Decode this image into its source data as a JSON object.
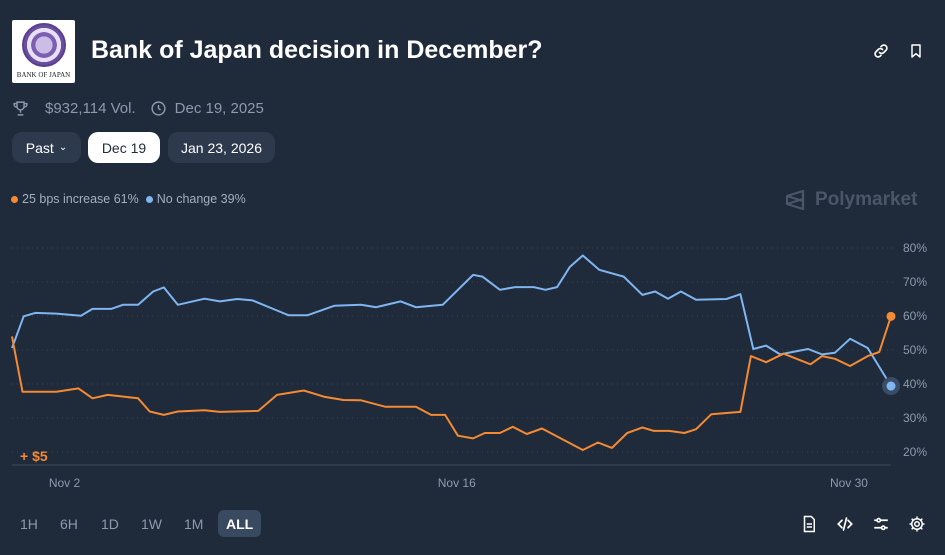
{
  "header": {
    "logo_text": "BANK OF JAPAN",
    "title": "Bank of Japan decision in December?",
    "volume": "$932,114 Vol.",
    "end_date": "Dec 19, 2025"
  },
  "date_tabs": [
    {
      "label": "Past",
      "selected": false
    },
    {
      "label": "Dec 19",
      "selected": true
    },
    {
      "label": "Jan 23, 2026",
      "selected": false
    }
  ],
  "legend": [
    {
      "label": "25 bps increase 61%",
      "color": "#f58a32"
    },
    {
      "label": "No change 39%",
      "color": "#7fb6f2"
    }
  ],
  "brand": "Polymarket",
  "chart_data": {
    "type": "line",
    "ylim": [
      20,
      80
    ],
    "y_ticks": [
      "80%",
      "70%",
      "60%",
      "50%",
      "40%",
      "30%",
      "20%"
    ],
    "y_tick_values": [
      80,
      70,
      60,
      50,
      40,
      30,
      20
    ],
    "x_ticks": [
      {
        "label": "Nov 2",
        "date": "2025-11-02T00:00"
      },
      {
        "label": "Nov 16",
        "date": "2025-11-16T00:00"
      },
      {
        "label": "Nov 30",
        "date": "2025-11-30T00:00"
      }
    ],
    "annotation": "+ $5",
    "grid": true,
    "series": [
      {
        "name": "No change",
        "color": "#7fb6f2",
        "points": [
          [
            "2025-10-31T03:00",
            50.6
          ],
          [
            "2025-10-31T13:00",
            59.9
          ],
          [
            "2025-10-31T23:00",
            60.9
          ],
          [
            "2025-11-01T17:00",
            60.7
          ],
          [
            "2025-11-02T14:00",
            60.1
          ],
          [
            "2025-11-03T00:00",
            62.1
          ],
          [
            "2025-11-03T16:00",
            62.1
          ],
          [
            "2025-11-04T02:00",
            63.3
          ],
          [
            "2025-11-04T15:00",
            63.3
          ],
          [
            "2025-11-05T04:00",
            67.2
          ],
          [
            "2025-11-05T13:00",
            68.4
          ],
          [
            "2025-11-06T01:00",
            63.3
          ],
          [
            "2025-11-07T00:00",
            65.1
          ],
          [
            "2025-11-07T13:00",
            64.3
          ],
          [
            "2025-11-08T04:00",
            65.0
          ],
          [
            "2025-11-08T17:00",
            64.6
          ],
          [
            "2025-11-09T12:00",
            61.9
          ],
          [
            "2025-11-10T00:00",
            60.2
          ],
          [
            "2025-11-10T16:00",
            60.2
          ],
          [
            "2025-11-11T15:00",
            63.0
          ],
          [
            "2025-11-12T14:00",
            63.3
          ],
          [
            "2025-11-13T03:00",
            62.6
          ],
          [
            "2025-11-14T00:00",
            64.3
          ],
          [
            "2025-11-14T13:00",
            62.6
          ],
          [
            "2025-11-15T12:00",
            63.3
          ],
          [
            "2025-11-16T14:00",
            72.1
          ],
          [
            "2025-11-16T22:00",
            71.6
          ],
          [
            "2025-11-17T13:00",
            67.7
          ],
          [
            "2025-11-18T02:00",
            68.5
          ],
          [
            "2025-11-18T18:00",
            68.5
          ],
          [
            "2025-11-19T04:00",
            67.7
          ],
          [
            "2025-11-19T14:00",
            68.5
          ],
          [
            "2025-11-20T01:00",
            74.5
          ],
          [
            "2025-11-20T12:00",
            77.8
          ],
          [
            "2025-11-21T02:00",
            73.6
          ],
          [
            "2025-11-21T23:00",
            71.6
          ],
          [
            "2025-11-22T15:00",
            66.2
          ],
          [
            "2025-11-23T02:00",
            67.2
          ],
          [
            "2025-11-23T13:00",
            65.1
          ],
          [
            "2025-11-24T00:00",
            67.2
          ],
          [
            "2025-11-24T13:00",
            64.8
          ],
          [
            "2025-11-25T15:00",
            65.0
          ],
          [
            "2025-11-26T03:00",
            66.4
          ],
          [
            "2025-11-26T14:00",
            50.3
          ],
          [
            "2025-11-27T01:00",
            51.3
          ],
          [
            "2025-11-27T13:00",
            48.7
          ],
          [
            "2025-11-28T13:00",
            50.3
          ],
          [
            "2025-11-29T01:00",
            48.7
          ],
          [
            "2025-11-29T12:00",
            49.2
          ],
          [
            "2025-11-30T01:00",
            53.3
          ],
          [
            "2025-11-30T16:00",
            50.6
          ],
          [
            "2025-12-01T12:00",
            39.4
          ]
        ]
      },
      {
        "name": "25 bps increase",
        "color": "#f58a32",
        "points": [
          [
            "2025-10-31T03:00",
            54.0
          ],
          [
            "2025-10-31T12:00",
            37.7
          ],
          [
            "2025-11-01T17:00",
            37.7
          ],
          [
            "2025-11-02T12:00",
            38.7
          ],
          [
            "2025-11-03T00:00",
            35.8
          ],
          [
            "2025-11-03T13:00",
            36.8
          ],
          [
            "2025-11-04T15:00",
            35.8
          ],
          [
            "2025-11-05T01:00",
            31.9
          ],
          [
            "2025-11-05T13:00",
            30.9
          ],
          [
            "2025-11-06T01:00",
            31.9
          ],
          [
            "2025-11-07T00:00",
            32.3
          ],
          [
            "2025-11-07T13:00",
            31.8
          ],
          [
            "2025-11-08T22:00",
            32.1
          ],
          [
            "2025-11-09T14:00",
            36.8
          ],
          [
            "2025-11-10T13:00",
            38.1
          ],
          [
            "2025-11-11T07:00",
            36.2
          ],
          [
            "2025-11-11T23:00",
            35.3
          ],
          [
            "2025-11-12T14:00",
            35.2
          ],
          [
            "2025-11-13T11:00",
            33.3
          ],
          [
            "2025-11-14T13:00",
            33.3
          ],
          [
            "2025-11-15T02:00",
            30.9
          ],
          [
            "2025-11-15T14:00",
            30.9
          ],
          [
            "2025-11-16T01:00",
            24.8
          ],
          [
            "2025-11-16T14:00",
            24.0
          ],
          [
            "2025-11-17T00:00",
            25.6
          ],
          [
            "2025-11-17T13:00",
            25.6
          ],
          [
            "2025-11-18T00:00",
            27.4
          ],
          [
            "2025-11-18T12:00",
            25.3
          ],
          [
            "2025-11-19T01:00",
            26.9
          ],
          [
            "2025-11-20T12:00",
            20.6
          ],
          [
            "2025-11-21T01:00",
            22.8
          ],
          [
            "2025-11-21T13:00",
            21.2
          ],
          [
            "2025-11-22T02:00",
            25.6
          ],
          [
            "2025-11-22T15:00",
            27.2
          ],
          [
            "2025-11-23T01:00",
            26.2
          ],
          [
            "2025-11-23T14:00",
            26.2
          ],
          [
            "2025-11-24T03:00",
            25.6
          ],
          [
            "2025-11-24T13:00",
            26.7
          ],
          [
            "2025-11-25T02:00",
            31.1
          ],
          [
            "2025-11-26T03:00",
            31.8
          ],
          [
            "2025-11-26T12:00",
            48.2
          ],
          [
            "2025-11-27T01:00",
            46.4
          ],
          [
            "2025-11-27T16:00",
            48.9
          ],
          [
            "2025-11-28T15:00",
            45.8
          ],
          [
            "2025-11-29T01:00",
            48.2
          ],
          [
            "2025-11-29T12:00",
            47.4
          ],
          [
            "2025-11-30T01:00",
            45.3
          ],
          [
            "2025-11-30T16:00",
            48.2
          ],
          [
            "2025-12-01T02:00",
            49.4
          ],
          [
            "2025-12-01T12:00",
            59.9
          ]
        ]
      }
    ]
  },
  "time_ranges": [
    {
      "label": "1H",
      "selected": false
    },
    {
      "label": "6H",
      "selected": false
    },
    {
      "label": "1D",
      "selected": false
    },
    {
      "label": "1W",
      "selected": false
    },
    {
      "label": "1M",
      "selected": false
    },
    {
      "label": "ALL",
      "selected": true
    }
  ],
  "icons": [
    "link-icon",
    "bookmark-icon",
    "document-icon",
    "code-icon",
    "sliders-icon",
    "gear-icon"
  ]
}
